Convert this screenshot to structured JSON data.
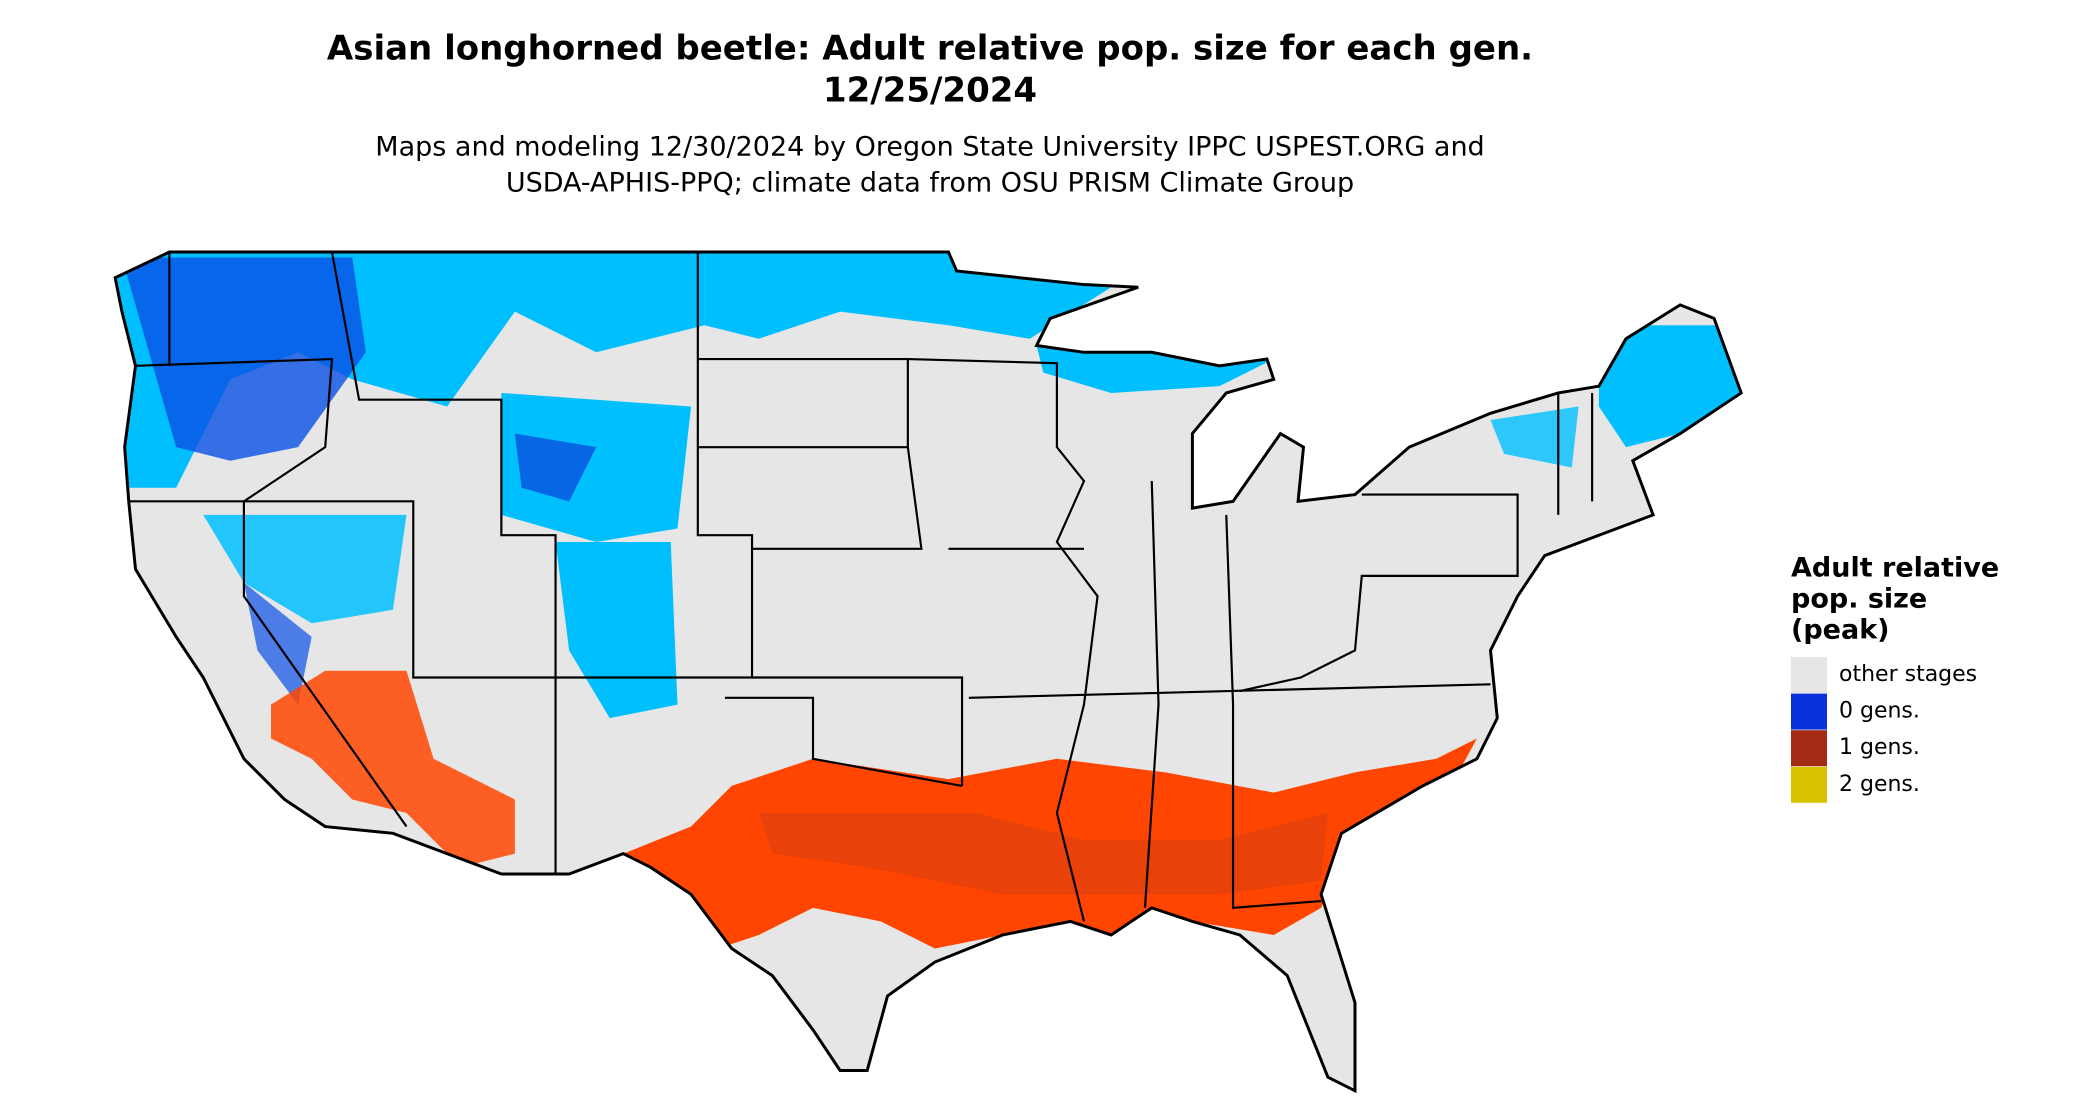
{
  "title": "Asian longhorned beetle: Adult relative pop. size for each gen.",
  "date": "12/25/2024",
  "subtitle_lines": [
    "Maps and modeling 12/30/2024 by Oregon State University IPPC USPEST.ORG and",
    "USDA-APHIS-PPQ; climate data from OSU PRISM Climate Group"
  ],
  "legend": {
    "title_lines": [
      "Adult relative",
      "pop. size",
      "(peak)"
    ],
    "items": [
      {
        "label": "other stages",
        "color": "#e6e6e6"
      },
      {
        "label": "0 gens.",
        "color": "#0a30dc"
      },
      {
        "label": "1 gens.",
        "color": "#a52a14"
      },
      {
        "label": "2 gens.",
        "color": "#d6c200"
      }
    ]
  }
}
